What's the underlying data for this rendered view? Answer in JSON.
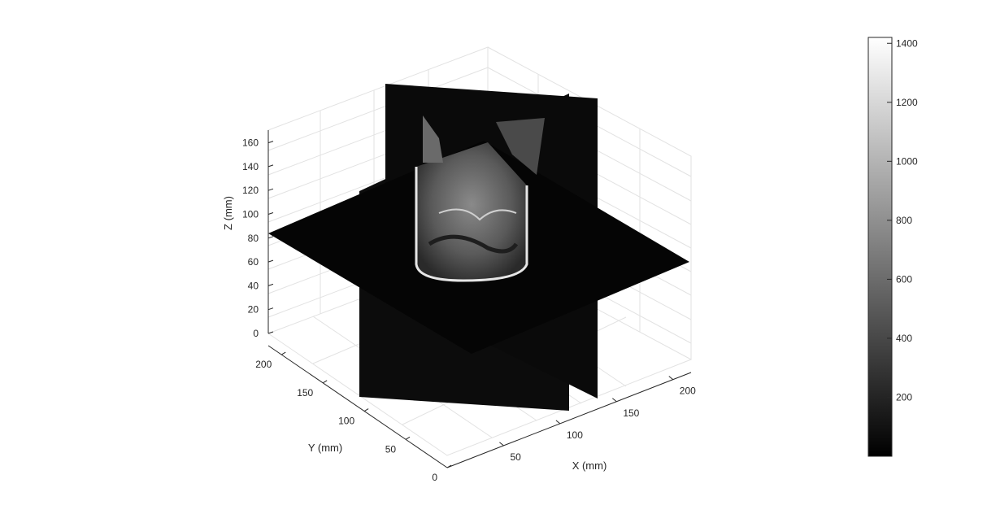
{
  "chart_data": {
    "type": "slice-volume",
    "description_free": true,
    "x_axis": {
      "label": "X (mm)",
      "ticks": [
        50,
        100,
        150,
        200
      ]
    },
    "y_axis": {
      "label": "Y (mm)",
      "ticks": [
        0,
        50,
        100,
        150,
        200
      ]
    },
    "z_axis": {
      "label": "Z (mm)",
      "ticks": [
        0,
        20,
        40,
        60,
        80,
        100,
        120,
        140,
        160
      ]
    },
    "colorbar": {
      "colormap": "gray",
      "ticks": [
        200,
        400,
        600,
        800,
        1000,
        1200,
        1400
      ]
    },
    "grid": true
  }
}
